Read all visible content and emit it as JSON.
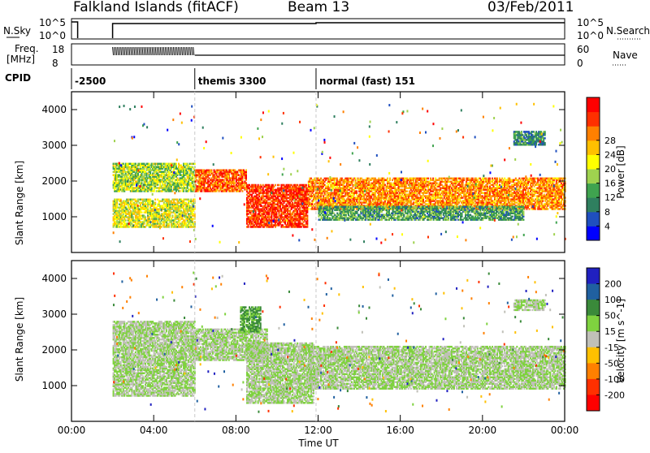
{
  "header": {
    "site": "Falkland Islands (fitACF)",
    "beam": "Beam 13",
    "date": "03/Feb/2011"
  },
  "status_panels": {
    "nsky_label": "N.Sky",
    "nsearch_label": "N.Search",
    "freq_label_1": "Freq.",
    "freq_label_2": "[MHz]",
    "nave_label": "Nave",
    "cpid_label": "CPID",
    "left_ticks_top": [
      "10^5",
      "10^0"
    ],
    "right_ticks_top": [
      "10^5",
      "10^0"
    ],
    "left_ticks_freq": [
      "18",
      "8"
    ],
    "right_ticks_nave": [
      "60",
      "0"
    ]
  },
  "cpid_segments": [
    {
      "label": "-2500",
      "start_h": 0.0
    },
    {
      "label": "themis 3300",
      "start_h": 6.0
    },
    {
      "label": "normal (fast) 151",
      "start_h": 11.9
    }
  ],
  "chart_data": [
    {
      "type": "heatmap",
      "panel": "power",
      "ylabel": "Slant Range [km]",
      "xlabel": "Time UT",
      "xlim": [
        0,
        24
      ],
      "ylim": [
        0,
        4500
      ],
      "yticks": [
        1000,
        2000,
        3000,
        4000
      ],
      "xticks": [
        "00:00",
        "04:00",
        "08:00",
        "12:00",
        "16:00",
        "20:00",
        "00:00"
      ],
      "colorbar": {
        "label": "Power [dB]",
        "ticks": [
          4,
          8,
          12,
          16,
          20,
          24,
          28
        ],
        "range": [
          0,
          30
        ],
        "colors": [
          "#0000ff",
          "#1f4fbf",
          "#2f7f5f",
          "#3fa34f",
          "#9fd24f",
          "#ffff00",
          "#ffc000",
          "#ff8000",
          "#ff3000",
          "#ff0000"
        ]
      },
      "bands": [
        {
          "t0": 2.0,
          "t1": 6.0,
          "r0": 700,
          "r1": 1500,
          "value": 16
        },
        {
          "t0": 2.0,
          "t1": 6.0,
          "r0": 1700,
          "r1": 2500,
          "value": 14
        },
        {
          "t0": 6.0,
          "t1": 8.5,
          "r0": 1700,
          "r1": 2300,
          "value": 24
        },
        {
          "t0": 8.5,
          "t1": 11.5,
          "r0": 700,
          "r1": 1900,
          "value": 26
        },
        {
          "t0": 11.5,
          "t1": 24.0,
          "r0": 1200,
          "r1": 2100,
          "value": 22
        },
        {
          "t0": 12.0,
          "t1": 22.0,
          "r0": 900,
          "r1": 1300,
          "value": 10
        },
        {
          "t0": 21.5,
          "t1": 23.0,
          "r0": 3000,
          "r1": 3400,
          "value": 8
        }
      ]
    },
    {
      "type": "heatmap",
      "panel": "velocity",
      "ylabel": "Slant Range [km]",
      "xlabel": "Time UT",
      "xlim": [
        0,
        24
      ],
      "ylim": [
        0,
        4500
      ],
      "yticks": [
        1000,
        2000,
        3000,
        4000
      ],
      "xticks": [
        "00:00",
        "04:00",
        "08:00",
        "12:00",
        "16:00",
        "20:00",
        "00:00"
      ],
      "colorbar": {
        "label": "Velocity [m s^-1]",
        "ticks": [
          200,
          100,
          50,
          15,
          -15,
          -50,
          -100,
          -200
        ],
        "colors": [
          "#2020c0",
          "#2060a0",
          "#3a8a3a",
          "#7fd23f",
          "#c0c0b8",
          "#ffc000",
          "#ff8000",
          "#ff3000",
          "#ff0000"
        ]
      },
      "bands": [
        {
          "t0": 2.0,
          "t1": 6.0,
          "r0": 700,
          "r1": 2800,
          "value": 0
        },
        {
          "t0": 6.0,
          "t1": 9.5,
          "r0": 1700,
          "r1": 2600,
          "value": 0
        },
        {
          "t0": 8.5,
          "t1": 11.8,
          "r0": 500,
          "r1": 2200,
          "value": 0
        },
        {
          "t0": 11.5,
          "t1": 24.0,
          "r0": 900,
          "r1": 2100,
          "value": 0
        },
        {
          "t0": 8.2,
          "t1": 9.2,
          "r0": 2500,
          "r1": 3200,
          "value": 40
        },
        {
          "t0": 21.5,
          "t1": 23.0,
          "r0": 3100,
          "r1": 3400,
          "value": 0
        }
      ]
    }
  ]
}
